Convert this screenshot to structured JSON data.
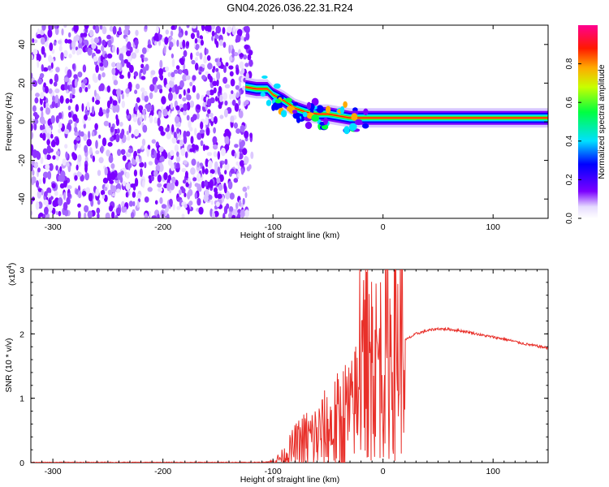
{
  "title": "GN04.2026.036.22.31.R24",
  "colors": {
    "spectrum_low": "#7b00ff",
    "snr_line": "#e8302a",
    "axis": "#000000"
  },
  "chart_data": [
    {
      "type": "heatmap",
      "title": "GN04.2026.036.22.31.R24",
      "xlabel": "Height of straight line (km)",
      "ylabel": "Frequency (Hz)",
      "xlim": [
        -320,
        150
      ],
      "ylim": [
        -50,
        50
      ],
      "xticks": [
        -300,
        -200,
        -100,
        0,
        100
      ],
      "yticks": [
        -40,
        -20,
        0,
        20,
        40
      ],
      "noise_region_x": [
        -320,
        -120
      ],
      "signal_track": {
        "x": [
          -125,
          -115,
          -105,
          -100,
          -90,
          -80,
          -70,
          -60,
          -50,
          -40,
          -30,
          -20,
          -10,
          0,
          20,
          50,
          80,
          100,
          120,
          150
        ],
        "freq_hz": [
          18,
          17,
          17,
          14,
          11,
          7,
          5,
          4,
          4,
          3,
          2,
          2,
          2,
          2,
          2,
          2,
          2,
          2,
          2,
          2
        ]
      },
      "colorbar": {
        "label": "Normalized spectral amplitude",
        "range": [
          0,
          1
        ],
        "ticks": [
          "0.0",
          "0.2",
          "0.4",
          "0.6",
          "0.8"
        ]
      }
    },
    {
      "type": "line",
      "xlabel": "Height of straight line (km)",
      "ylabel": "SNR (10 * v/v)",
      "scale_label": "(x10",
      "scale_exponent": "4",
      "xlim": [
        -320,
        150
      ],
      "ylim": [
        0,
        3
      ],
      "xticks": [
        -300,
        -200,
        -100,
        0,
        100
      ],
      "yticks": [
        0,
        1,
        2,
        3
      ],
      "series": [
        {
          "name": "SNR",
          "x": [
            -320,
            -200,
            -110,
            -100,
            -90,
            -80,
            -70,
            -60,
            -50,
            -40,
            -30,
            -20,
            -15,
            -10,
            0,
            10,
            20,
            30,
            40,
            50,
            60,
            70,
            80,
            90,
            100,
            110,
            120,
            130,
            140,
            150
          ],
          "y": [
            0.0,
            0.0,
            0.0,
            0.02,
            0.1,
            0.25,
            0.35,
            0.4,
            0.5,
            0.6,
            0.75,
            1.2,
            1.6,
            1.5,
            1.6,
            1.8,
            1.9,
            2.0,
            2.05,
            2.08,
            2.07,
            2.05,
            2.02,
            1.98,
            1.95,
            1.92,
            1.88,
            1.84,
            1.81,
            1.78
          ]
        }
      ]
    }
  ]
}
